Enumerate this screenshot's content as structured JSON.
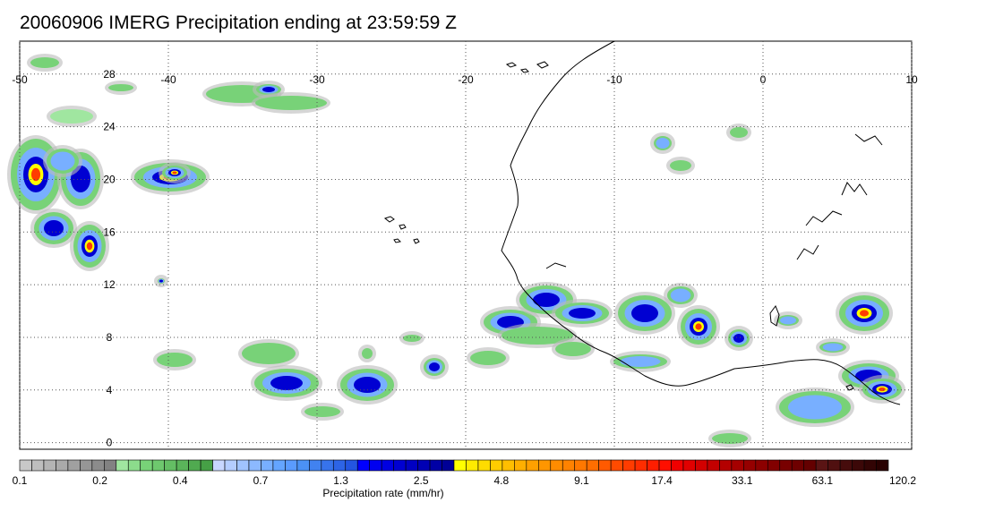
{
  "title": "20060906 IMERG Precipitation ending at 23:59:59 Z",
  "map": {
    "lon_range": [
      -50,
      10
    ],
    "lat_range": [
      -0.5,
      30.5
    ],
    "lon_ticks": [
      -50,
      -40,
      -30,
      -20,
      -10,
      0,
      10
    ],
    "lat_ticks": [
      0,
      4,
      8,
      12,
      16,
      20,
      24,
      28
    ],
    "grid": "dotted"
  },
  "colorbar": {
    "label": "Precipitation rate (mm/hr)",
    "tick_labels": [
      "0.1",
      "0.2",
      "0.4",
      "0.7",
      "1.3",
      "2.5",
      "4.8",
      "9.1",
      "17.4",
      "33.1",
      "63.1",
      "120.2"
    ],
    "colors": [
      "#c8c8c8",
      "#bebebe",
      "#b4b4b4",
      "#aaaaaa",
      "#a0a0a0",
      "#969696",
      "#8c8c8c",
      "#828282",
      "#a0e6a0",
      "#8cdc8c",
      "#78d278",
      "#6ec86e",
      "#64be64",
      "#5ab45a",
      "#50aa50",
      "#46a046",
      "#c8d7ff",
      "#b4cdff",
      "#a0c3ff",
      "#8cb9ff",
      "#78afff",
      "#64a5ff",
      "#5a9bff",
      "#4b91f5",
      "#4182f0",
      "#3773eb",
      "#2d64e6",
      "#2355e1",
      "#0000ff",
      "#0000f0",
      "#0000e1",
      "#0000d2",
      "#0000c3",
      "#0000b4",
      "#0000a5",
      "#000096",
      "#ffff00",
      "#ffeb00",
      "#ffdc00",
      "#ffcd00",
      "#ffbe00",
      "#ffaf00",
      "#ffa000",
      "#ff9600",
      "#ff8c00",
      "#ff8200",
      "#ff7800",
      "#ff6e00",
      "#ff5a00",
      "#ff4b00",
      "#ff3c00",
      "#ff2d00",
      "#ff1e00",
      "#ff0f00",
      "#f00000",
      "#e10000",
      "#d20000",
      "#c30000",
      "#b40000",
      "#a50000",
      "#960000",
      "#8c0000",
      "#820000",
      "#780000",
      "#6e0000",
      "#640000",
      "#5a1414",
      "#501010",
      "#460c0c",
      "#3c0808",
      "#320404",
      "#280000"
    ]
  }
}
